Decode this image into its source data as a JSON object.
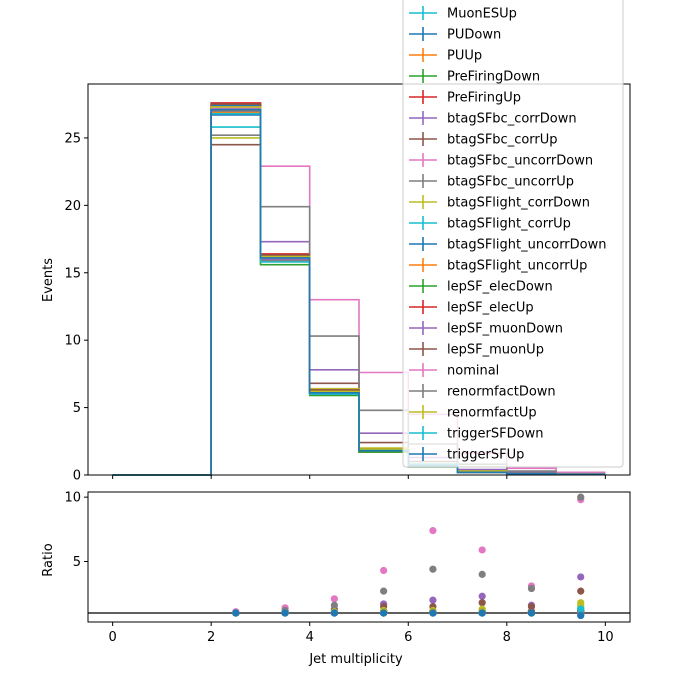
{
  "chart_data": {
    "type": "step-histogram-with-ratio",
    "xlabel": "Jet multiplicity",
    "ylabel_top": "Events",
    "ylabel_bottom": "Ratio",
    "xlim": [
      -0.5,
      10.5
    ],
    "ylim_top": [
      0,
      29
    ],
    "ylim_bottom": [
      0.3,
      10.4
    ],
    "xticks": [
      0,
      2,
      4,
      6,
      8,
      10
    ],
    "yticks_top": [
      0,
      5,
      10,
      15,
      20,
      25
    ],
    "yticks_bottom": [
      5,
      10
    ],
    "ratio_reference_line": 1,
    "bin_edges": [
      0,
      1,
      2,
      3,
      4,
      5,
      6,
      7,
      8,
      9,
      10
    ],
    "ratio_x": [
      2.5,
      3.5,
      4.5,
      5.5,
      6.5,
      7.5,
      8.5,
      9.5
    ],
    "legend_position": "top-right",
    "series": [
      {
        "name": "MuonESUp",
        "color": "#17becf",
        "values": [
          0,
          0,
          27.2,
          16.0,
          6.1,
          1.8,
          0.7,
          0.2,
          0.1,
          0.04
        ],
        "ratio": [
          1.0,
          1.0,
          1.0,
          1.0,
          1.0,
          1.0,
          1.0,
          1.1
        ]
      },
      {
        "name": "PUDown",
        "color": "#1f77b4",
        "values": [
          0,
          0,
          27.4,
          16.2,
          6.2,
          1.8,
          0.7,
          0.2,
          0.1,
          0.04
        ],
        "ratio": [
          1.0,
          1.0,
          1.0,
          1.0,
          1.0,
          1.0,
          1.0,
          1.0
        ]
      },
      {
        "name": "PUUp",
        "color": "#ff7f0e",
        "values": [
          0,
          0,
          27.0,
          15.9,
          6.0,
          1.7,
          0.7,
          0.2,
          0.1,
          0.04
        ],
        "ratio": [
          1.0,
          1.0,
          1.0,
          1.0,
          1.0,
          1.0,
          1.0,
          1.1
        ]
      },
      {
        "name": "PreFiringDown",
        "color": "#2ca02c",
        "values": [
          0,
          0,
          27.3,
          15.6,
          5.9,
          1.7,
          0.6,
          0.2,
          0.1,
          0.04
        ],
        "ratio": [
          1.0,
          1.0,
          1.0,
          1.0,
          1.0,
          1.0,
          1.0,
          1.0
        ]
      },
      {
        "name": "PreFiringUp",
        "color": "#d62728",
        "values": [
          0,
          0,
          27.6,
          16.4,
          6.3,
          1.9,
          0.7,
          0.2,
          0.1,
          0.04
        ],
        "ratio": [
          1.0,
          1.0,
          1.0,
          1.1,
          1.1,
          1.1,
          1.1,
          1.2
        ]
      },
      {
        "name": "btagSFbc_corrDown",
        "color": "#9467bd",
        "values": [
          0,
          0,
          27.3,
          17.3,
          7.8,
          3.1,
          1.3,
          0.4,
          0.2,
          0.08
        ],
        "ratio": [
          1.0,
          1.1,
          1.3,
          1.7,
          2.0,
          2.3,
          1.6,
          3.8
        ]
      },
      {
        "name": "btagSFbc_corrUp",
        "color": "#8c564b",
        "values": [
          0,
          0,
          24.5,
          16.0,
          6.8,
          2.4,
          1.0,
          0.3,
          0.15,
          0.05
        ],
        "ratio": [
          1.0,
          1.1,
          1.2,
          1.5,
          1.5,
          1.8,
          1.5,
          2.7
        ]
      },
      {
        "name": "btagSFbc_uncorrDown",
        "color": "#e377c2",
        "values": [
          0,
          0,
          27.1,
          22.9,
          13.0,
          7.6,
          4.5,
          1.6,
          0.5,
          0.2
        ],
        "ratio": [
          1.1,
          1.4,
          2.1,
          4.3,
          7.4,
          5.9,
          3.1,
          9.8
        ]
      },
      {
        "name": "btagSFbc_uncorrUp",
        "color": "#7f7f7f",
        "values": [
          0,
          0,
          25.2,
          19.9,
          10.3,
          4.8,
          2.3,
          0.8,
          0.3,
          0.1
        ],
        "ratio": [
          1.0,
          1.2,
          1.6,
          2.7,
          4.4,
          4.0,
          2.9,
          10.0
        ]
      },
      {
        "name": "btagSFlight_corrDown",
        "color": "#bcbd22",
        "values": [
          0,
          0,
          25.0,
          16.2,
          6.4,
          2.0,
          0.8,
          0.3,
          0.1,
          0.05
        ],
        "ratio": [
          1.0,
          1.0,
          1.1,
          1.2,
          1.2,
          1.3,
          1.1,
          1.8
        ]
      },
      {
        "name": "btagSFlight_corrUp",
        "color": "#17becf",
        "values": [
          0,
          0,
          25.8,
          16.1,
          6.2,
          1.9,
          0.8,
          0.2,
          0.1,
          0.05
        ],
        "ratio": [
          1.0,
          1.0,
          1.0,
          1.1,
          1.1,
          1.1,
          1.0,
          1.4
        ]
      },
      {
        "name": "btagSFlight_uncorrDown",
        "color": "#1f77b4",
        "values": [
          0,
          0,
          26.7,
          16.0,
          6.1,
          1.8,
          0.7,
          0.2,
          0.1,
          0.04
        ],
        "ratio": [
          1.0,
          1.0,
          1.0,
          1.0,
          1.0,
          1.0,
          1.0,
          0.9
        ]
      },
      {
        "name": "btagSFlight_uncorrUp",
        "color": "#ff7f0e",
        "values": [
          0,
          0,
          26.9,
          16.1,
          6.2,
          1.9,
          0.7,
          0.2,
          0.1,
          0.04
        ],
        "ratio": [
          1.0,
          1.0,
          1.0,
          1.1,
          1.1,
          1.1,
          1.0,
          1.2
        ]
      },
      {
        "name": "lepSF_elecDown",
        "color": "#2ca02c",
        "values": [
          0,
          0,
          27.1,
          16.0,
          6.1,
          1.8,
          0.7,
          0.2,
          0.1,
          0.04
        ],
        "ratio": [
          1.0,
          1.0,
          1.0,
          1.0,
          1.0,
          1.0,
          1.0,
          1.0
        ]
      },
      {
        "name": "lepSF_elecUp",
        "color": "#d62728",
        "values": [
          0,
          0,
          27.5,
          16.3,
          6.3,
          1.9,
          0.7,
          0.2,
          0.1,
          0.04
        ],
        "ratio": [
          1.0,
          1.0,
          1.0,
          1.1,
          1.1,
          1.1,
          1.1,
          1.1
        ]
      },
      {
        "name": "lepSF_muonDown",
        "color": "#9467bd",
        "values": [
          0,
          0,
          27.0,
          16.0,
          6.1,
          1.8,
          0.7,
          0.2,
          0.1,
          0.04
        ],
        "ratio": [
          1.0,
          1.0,
          1.0,
          1.0,
          1.0,
          1.0,
          1.0,
          1.0
        ]
      },
      {
        "name": "lepSF_muonUp",
        "color": "#8c564b",
        "values": [
          0,
          0,
          27.5,
          16.3,
          6.3,
          1.9,
          0.7,
          0.2,
          0.1,
          0.04
        ],
        "ratio": [
          1.0,
          1.0,
          1.0,
          1.1,
          1.1,
          1.1,
          1.1,
          1.1
        ]
      },
      {
        "name": "nominal",
        "color": "#e377c2",
        "values": [
          0,
          0,
          27.2,
          16.1,
          6.1,
          1.8,
          0.7,
          0.2,
          0.1,
          0.04
        ],
        "ratio": [
          1.0,
          1.0,
          1.0,
          1.0,
          1.0,
          1.0,
          1.0,
          1.0
        ]
      },
      {
        "name": "renormfactDown",
        "color": "#7f7f7f",
        "values": [
          0,
          0,
          27.0,
          15.9,
          6.0,
          1.8,
          0.7,
          0.2,
          0.1,
          0.04
        ],
        "ratio": [
          1.0,
          1.0,
          1.0,
          1.0,
          1.0,
          1.0,
          1.0,
          1.0
        ]
      },
      {
        "name": "renormfactUp",
        "color": "#bcbd22",
        "values": [
          0,
          0,
          27.3,
          16.2,
          6.2,
          1.9,
          0.7,
          0.2,
          0.1,
          0.04
        ],
        "ratio": [
          1.0,
          1.0,
          1.0,
          1.1,
          1.1,
          1.1,
          1.0,
          1.6
        ]
      },
      {
        "name": "triggerSFDown",
        "color": "#17becf",
        "values": [
          0,
          0,
          26.8,
          15.8,
          6.0,
          1.8,
          0.7,
          0.2,
          0.1,
          0.04
        ],
        "ratio": [
          1.0,
          1.0,
          1.0,
          1.0,
          1.0,
          1.0,
          1.0,
          1.3
        ]
      },
      {
        "name": "triggerSFUp",
        "color": "#1f77b4",
        "values": [
          0,
          0,
          27.1,
          16.1,
          6.1,
          1.8,
          0.7,
          0.2,
          0.1,
          0.04
        ],
        "ratio": [
          1.0,
          1.0,
          1.0,
          1.0,
          1.0,
          1.0,
          1.0,
          0.8
        ]
      }
    ]
  }
}
